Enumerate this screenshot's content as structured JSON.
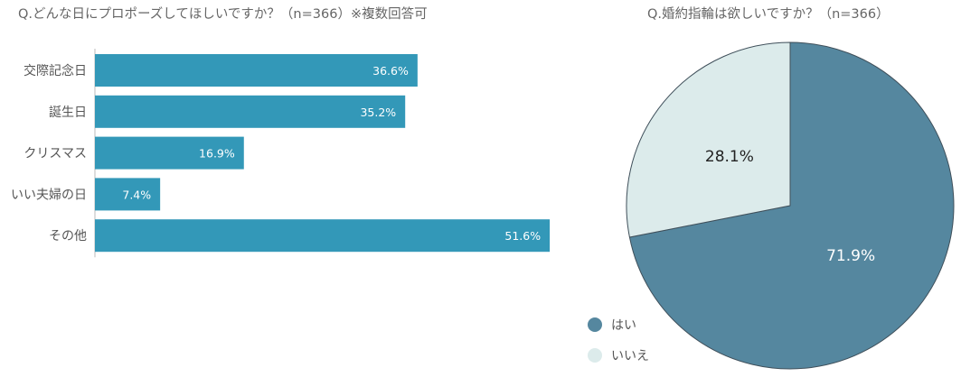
{
  "chart_data": [
    {
      "type": "bar",
      "orientation": "horizontal",
      "title": "Q.どんな日にプロポーズしてほしいですか？（n=366）※複数回答可",
      "categories": [
        "交際記念日",
        "誕生日",
        "クリスマス",
        "いい夫婦の日",
        "その他"
      ],
      "values": [
        36.6,
        35.2,
        16.9,
        7.4,
        51.6
      ],
      "value_labels": [
        "36.6%",
        "35.2%",
        "16.9%",
        "7.4%",
        "51.6%"
      ],
      "unit": "%",
      "xlim": [
        0,
        100
      ],
      "color": "#3398b8",
      "grid": false
    },
    {
      "type": "pie",
      "title": "Q.婚約指輪は欲しいですか？（n=366）",
      "labels": [
        "はい",
        "いいえ"
      ],
      "values": [
        71.9,
        28.1
      ],
      "value_labels": [
        "71.9%",
        "28.1%"
      ],
      "colors": [
        "#55879f",
        "#dcebeb"
      ],
      "legend_position": "bottom-left"
    }
  ]
}
